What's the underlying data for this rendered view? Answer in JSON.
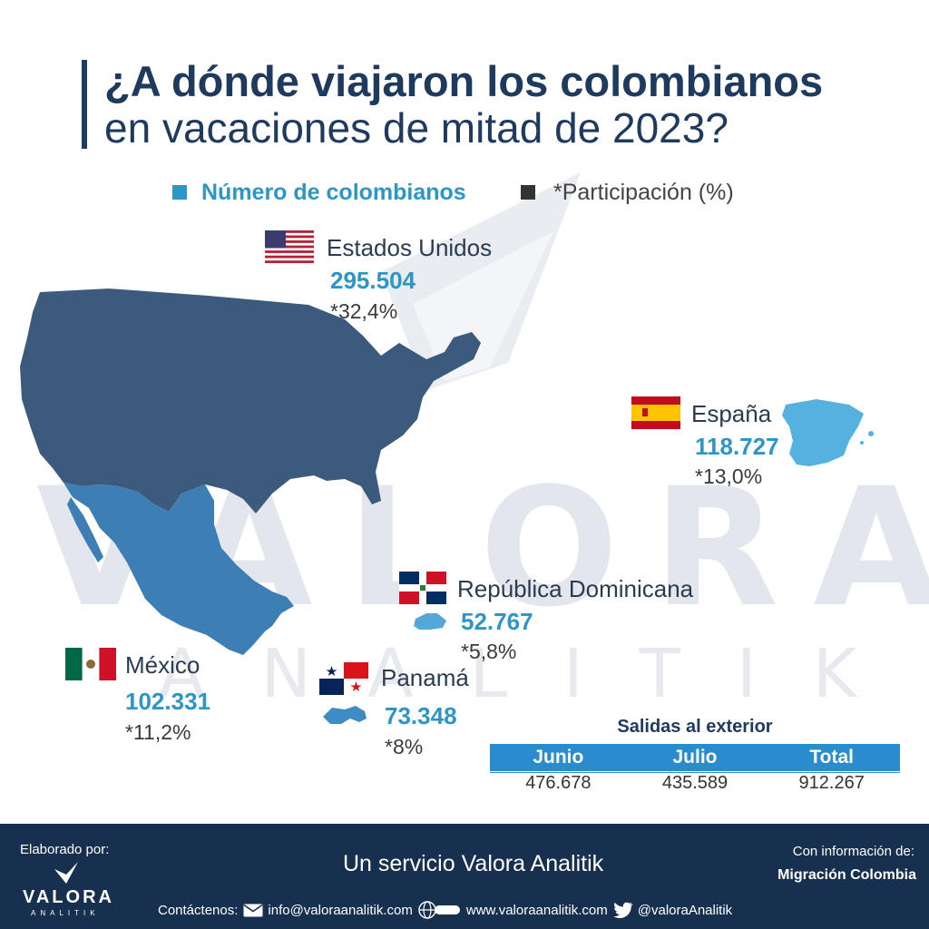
{
  "watermark": {
    "word": "VALORA",
    "sub": "ANALITIK"
  },
  "title": {
    "line1": "¿A dónde viajaron los colombianos",
    "line2": "en vacaciones de mitad de 2023?"
  },
  "legend": {
    "items": [
      {
        "label": "Número de colombianos",
        "color": "#2e95c7"
      },
      {
        "label": "*Participación (%)",
        "color": "#333333"
      }
    ]
  },
  "countries": [
    {
      "name": "Estados Unidos",
      "value": "295.504",
      "share": "*32,4%",
      "flag": "usa-flag-icon",
      "map_color": "#3b5a7c"
    },
    {
      "name": "España",
      "value": "118.727",
      "share": "*13,0%",
      "flag": "spain-flag-icon",
      "map_color": "#55b1e0"
    },
    {
      "name": "República Dominicana",
      "value": "52.767",
      "share": "*5,8%",
      "flag": "dominican-flag-icon",
      "map_color": "#55a7da"
    },
    {
      "name": "México",
      "value": "102.331",
      "share": "*11,2%",
      "flag": "mexico-flag-icon",
      "map_color": "#3d7fb5"
    },
    {
      "name": "Panamá",
      "value": "73.348",
      "share": "*8%",
      "flag": "panama-flag-icon",
      "map_color": "#3f8bc4"
    }
  ],
  "salidas": {
    "title": "Salidas al exterior",
    "headers": [
      "Junio",
      "Julio",
      "Total"
    ],
    "values": [
      "476.678",
      "435.589",
      "912.267"
    ]
  },
  "footer": {
    "elaborado": "Elaborado por:",
    "logo_word": "VALORA",
    "logo_sub": "ANALITIK",
    "servicio": "Un servicio Valora Analitik",
    "con_info": "Con información de:",
    "fuente": "Migración Colombia",
    "contact_label": "Contáctenos:",
    "email": "info@valoraanalitik.com",
    "web": "www.valoraanalitik.com",
    "twitter": "@valoraAnalitik"
  }
}
